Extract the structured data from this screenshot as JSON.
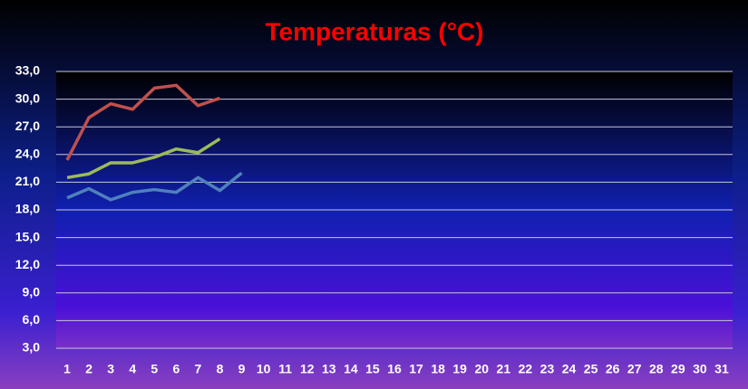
{
  "chart_data": {
    "type": "line",
    "title": "Temperaturas (°C)",
    "categories": [
      1,
      2,
      3,
      4,
      5,
      6,
      7,
      8,
      9,
      10,
      11,
      12,
      13,
      14,
      15,
      16,
      17,
      18,
      19,
      20,
      21,
      22,
      23,
      24,
      25,
      26,
      27,
      28,
      29,
      30,
      31
    ],
    "series": [
      {
        "color": "#c0504d",
        "values": [
          23.4,
          28.0,
          29.5,
          28.9,
          31.2,
          31.5,
          29.3,
          30.1,
          null,
          null,
          null,
          null,
          null,
          null,
          null,
          null,
          null,
          null,
          null,
          null,
          null,
          null,
          null,
          null,
          null,
          null,
          null,
          null,
          null,
          null,
          null
        ]
      },
      {
        "color": "#9bbb59",
        "values": [
          21.5,
          21.9,
          23.1,
          23.1,
          23.7,
          24.6,
          24.2,
          25.7,
          null,
          null,
          null,
          null,
          null,
          null,
          null,
          null,
          null,
          null,
          null,
          null,
          null,
          null,
          null,
          null,
          null,
          null,
          null,
          null,
          null,
          null,
          null
        ]
      },
      {
        "color": "#4f81bd",
        "values": [
          19.3,
          20.3,
          19.1,
          19.9,
          20.2,
          19.9,
          21.5,
          20.1,
          22.0,
          null,
          null,
          null,
          null,
          null,
          null,
          null,
          null,
          null,
          null,
          null,
          null,
          null,
          null,
          null,
          null,
          null,
          null,
          null,
          null,
          null,
          null
        ]
      }
    ],
    "ylim": [
      3,
      33
    ],
    "yticks": [
      {
        "value": 3,
        "label": "3,0"
      },
      {
        "value": 6,
        "label": "6,0"
      },
      {
        "value": 9,
        "label": "9,0"
      },
      {
        "value": 12,
        "label": "12,0"
      },
      {
        "value": 15,
        "label": "15,0"
      },
      {
        "value": 18,
        "label": "18,0"
      },
      {
        "value": 21,
        "label": "21,0"
      },
      {
        "value": 24,
        "label": "24,0"
      },
      {
        "value": 27,
        "label": "27,0"
      },
      {
        "value": 30,
        "label": "30,0"
      },
      {
        "value": 33,
        "label": "33,0"
      }
    ],
    "grid": true
  }
}
